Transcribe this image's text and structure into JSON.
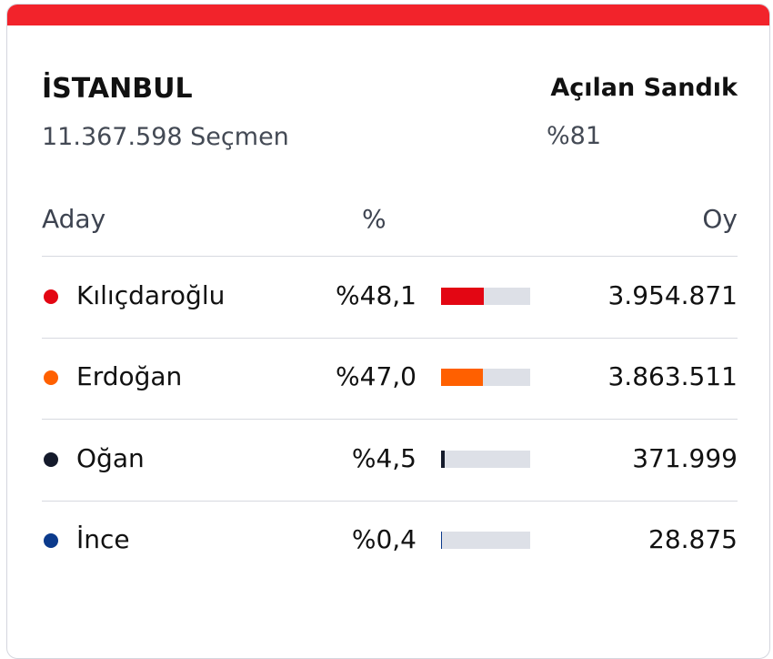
{
  "header": {
    "title": "İSTANBUL",
    "voters": "11.367.598 Seçmen",
    "opened_label": "Açılan Sandık",
    "opened_value": "%81"
  },
  "table": {
    "columns": [
      "Aday",
      "%",
      "Oy"
    ],
    "rows": [
      {
        "name": "Kılıçdaroğlu",
        "color": "#e30613",
        "pct": 48.1,
        "pct_label": "%48,1",
        "votes": "3.954.871"
      },
      {
        "name": "Erdoğan",
        "color": "#ff6000",
        "pct": 47.0,
        "pct_label": "%47,0",
        "votes": "3.863.511"
      },
      {
        "name": "Oğan",
        "color": "#141a2b",
        "pct": 4.5,
        "pct_label": "%4,5",
        "votes": "371.999"
      },
      {
        "name": "İnce",
        "color": "#0b3a8c",
        "pct": 0.4,
        "pct_label": "%0,4",
        "votes": "28.875"
      }
    ]
  }
}
